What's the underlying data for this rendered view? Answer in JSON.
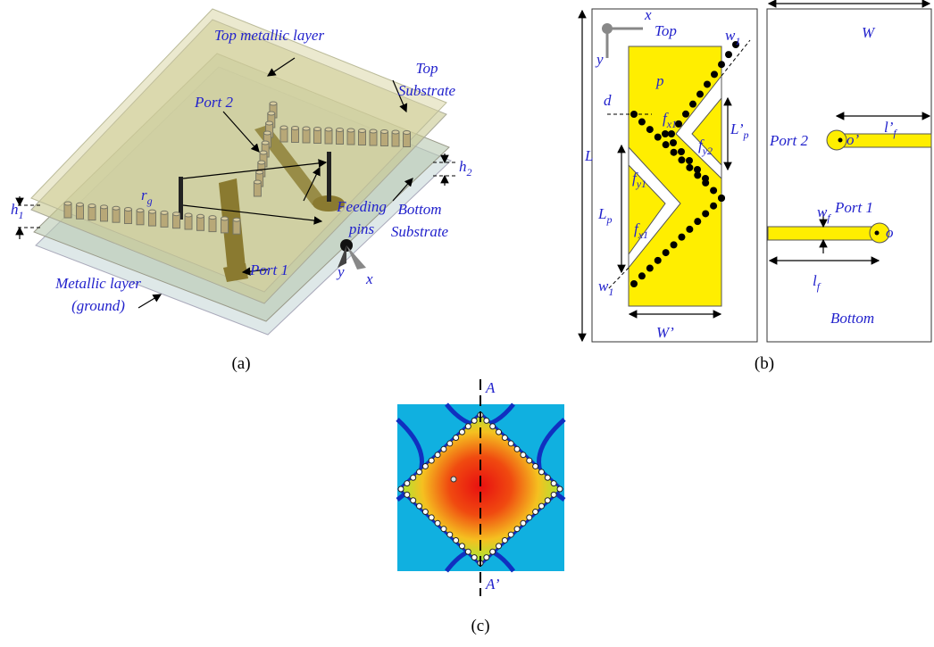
{
  "panel_a": {
    "caption": "(a)",
    "labels": [
      "Top metallic layer",
      [
        "Top",
        "Substrate"
      ],
      "Port 2",
      {
        "t": "h",
        "s": "1"
      },
      {
        "t": "h",
        "s": "2"
      },
      {
        "t": "r",
        "s": "g"
      },
      [
        "Feeding",
        "pins"
      ],
      [
        "Bottom",
        "Substrate"
      ],
      "Port 1",
      [
        "Metallic layer",
        "(ground)"
      ],
      "y",
      "x"
    ]
  },
  "panel_b": {
    "caption": "(b)",
    "labels": [
      "x",
      "Top",
      "y",
      {
        "t": "w",
        "s": "1"
      },
      "p",
      "d",
      {
        "t": "f",
        "s": "x1"
      },
      {
        "t": "L’",
        "s": "p"
      },
      {
        "t": "f",
        "s": "y2"
      },
      "L",
      {
        "t": "L",
        "s": "p"
      },
      {
        "t": "f",
        "s": "y1"
      },
      {
        "t": "f",
        "s": "x1"
      },
      {
        "t": "w",
        "s": "1"
      },
      "W’",
      "W",
      {
        "t": "l’",
        "s": "f"
      },
      "Port  2",
      "o’",
      {
        "t": "w",
        "s": "f"
      },
      "Port 1",
      "o",
      {
        "t": "l",
        "s": "f"
      },
      "Bottom"
    ]
  },
  "panel_c": {
    "caption": "(c)",
    "labels": [
      "A",
      "A’"
    ]
  }
}
